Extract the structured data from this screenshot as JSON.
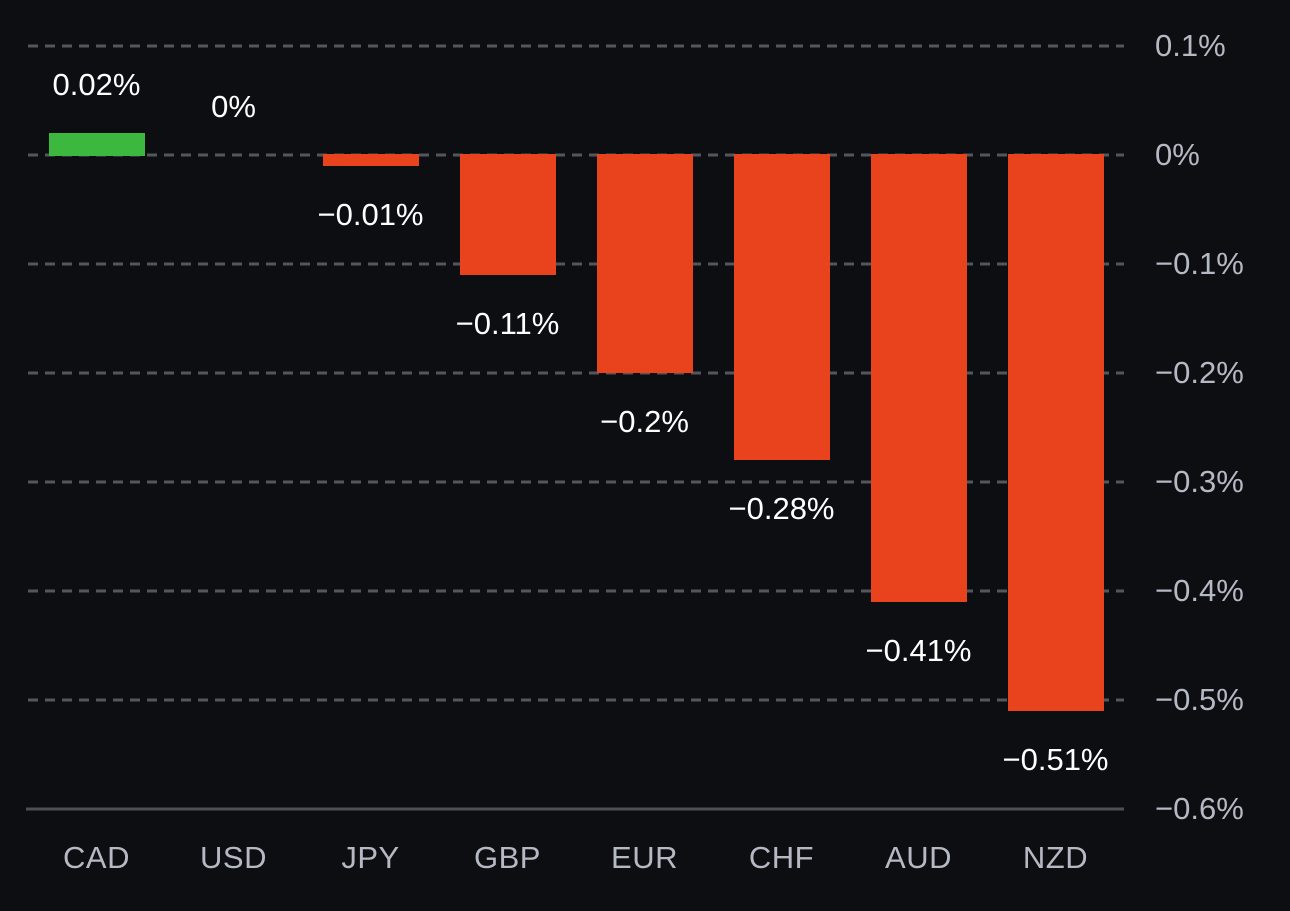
{
  "chart_data": {
    "type": "bar",
    "title": "",
    "categories": [
      "CAD",
      "USD",
      "JPY",
      "GBP",
      "EUR",
      "CHF",
      "AUD",
      "NZD"
    ],
    "values": [
      0.02,
      0,
      -0.01,
      -0.11,
      -0.2,
      -0.28,
      -0.41,
      -0.51
    ],
    "bar_labels": [
      "0.02%",
      "0%",
      "−0.01%",
      "−0.11%",
      "−0.2%",
      "−0.28%",
      "−0.41%",
      "−0.51%"
    ],
    "y_ticks": [
      {
        "label": "0.1%",
        "value": 0.1
      },
      {
        "label": "0%",
        "value": 0
      },
      {
        "label": "−0.1%",
        "value": -0.1
      },
      {
        "label": "−0.2%",
        "value": -0.2
      },
      {
        "label": "−0.3%",
        "value": -0.3
      },
      {
        "label": "−0.4%",
        "value": -0.4
      },
      {
        "label": "−0.5%",
        "value": -0.5
      },
      {
        "label": "−0.6%",
        "value": -0.6
      }
    ],
    "ylim": [
      -0.6,
      0.15
    ],
    "grid": "horizontal-dashed",
    "legend": null,
    "y_axis_side": "right",
    "colors": {
      "positive_bar": "#3db83f",
      "negative_bar": "#e8431c",
      "background": "#0d0e12",
      "gridline": "#53565c",
      "axis_line": "#4c4f55",
      "tick_label": "#b5b9c4",
      "category_label": "#b5b9c4",
      "bar_label": "#ffffff"
    }
  }
}
